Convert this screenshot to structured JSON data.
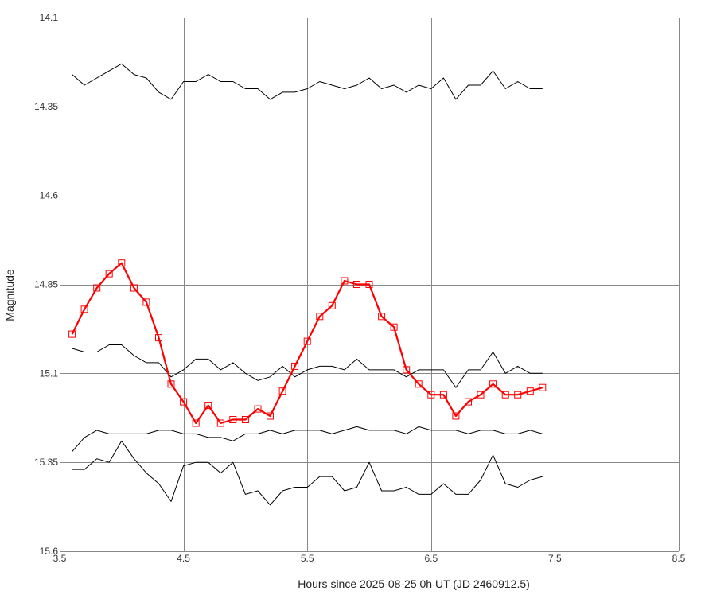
{
  "chart_data": {
    "type": "line",
    "title": "",
    "xlabel": "Hours since 2025-08-25 0h UT (JD 2460912.5)",
    "ylabel": "Magnitude",
    "xlim": [
      3.5,
      8.5
    ],
    "ylim": [
      14.1,
      15.6
    ],
    "y_inverted": true,
    "grid": true,
    "legend": "none",
    "xticks": [
      "3.5",
      "4.5",
      "5.5",
      "6.5",
      "7.5",
      "8.5"
    ],
    "yticks": [
      "14.1",
      "14.35",
      "14.6",
      "14.85",
      "15.1",
      "15.35",
      "15.6"
    ],
    "x": [
      3.6,
      3.7,
      3.8,
      3.9,
      4.0,
      4.1,
      4.2,
      4.3,
      4.4,
      4.5,
      4.6,
      4.7,
      4.8,
      4.9,
      5.0,
      5.1,
      5.2,
      5.3,
      5.4,
      5.5,
      5.6,
      5.7,
      5.8,
      5.9,
      6.0,
      6.1,
      6.2,
      6.3,
      6.4,
      6.5,
      6.6,
      6.7,
      6.8,
      6.9,
      7.0,
      7.1,
      7.2,
      7.3,
      7.4
    ],
    "series": [
      {
        "color": "#ff0000",
        "markers": true,
        "values": [
          14.99,
          14.92,
          14.86,
          14.82,
          14.79,
          14.86,
          14.9,
          15.0,
          15.13,
          15.18,
          15.24,
          15.19,
          15.24,
          15.23,
          15.23,
          15.2,
          15.22,
          15.15,
          15.08,
          15.01,
          14.94,
          14.91,
          14.84,
          14.85,
          14.85,
          14.94,
          14.97,
          15.09,
          15.13,
          15.16,
          15.16,
          15.22,
          15.18,
          15.16,
          15.13,
          15.16,
          15.16,
          15.15,
          15.14
        ]
      },
      {
        "color": "#000000",
        "markers": false,
        "values": [
          14.26,
          14.29,
          14.27,
          14.25,
          14.23,
          14.26,
          14.27,
          14.31,
          14.33,
          14.28,
          14.28,
          14.26,
          14.28,
          14.28,
          14.3,
          14.3,
          14.33,
          14.31,
          14.31,
          14.3,
          14.28,
          14.29,
          14.3,
          14.29,
          14.27,
          14.3,
          14.29,
          14.31,
          14.29,
          14.3,
          14.27,
          14.33,
          14.29,
          14.29,
          14.25,
          14.3,
          14.28,
          14.3,
          14.3
        ]
      },
      {
        "color": "#000000",
        "markers": false,
        "values": [
          15.03,
          15.04,
          15.04,
          15.02,
          15.02,
          15.05,
          15.07,
          15.07,
          15.11,
          15.09,
          15.06,
          15.06,
          15.09,
          15.07,
          15.1,
          15.12,
          15.11,
          15.08,
          15.11,
          15.09,
          15.08,
          15.08,
          15.09,
          15.06,
          15.09,
          15.09,
          15.09,
          15.11,
          15.09,
          15.09,
          15.09,
          15.14,
          15.09,
          15.09,
          15.04,
          15.1,
          15.08,
          15.1,
          15.1
        ]
      },
      {
        "color": "#000000",
        "markers": false,
        "values": [
          15.32,
          15.28,
          15.26,
          15.27,
          15.27,
          15.27,
          15.27,
          15.26,
          15.26,
          15.27,
          15.27,
          15.28,
          15.28,
          15.29,
          15.27,
          15.27,
          15.26,
          15.27,
          15.26,
          15.26,
          15.26,
          15.27,
          15.26,
          15.25,
          15.26,
          15.26,
          15.26,
          15.27,
          15.25,
          15.26,
          15.26,
          15.26,
          15.27,
          15.26,
          15.26,
          15.27,
          15.27,
          15.26,
          15.27
        ]
      },
      {
        "color": "#000000",
        "markers": false,
        "values": [
          15.37,
          15.37,
          15.34,
          15.35,
          15.29,
          15.34,
          15.38,
          15.41,
          15.46,
          15.36,
          15.35,
          15.35,
          15.38,
          15.35,
          15.44,
          15.43,
          15.47,
          15.43,
          15.42,
          15.42,
          15.39,
          15.39,
          15.43,
          15.42,
          15.35,
          15.43,
          15.43,
          15.42,
          15.44,
          15.44,
          15.41,
          15.44,
          15.44,
          15.4,
          15.33,
          15.41,
          15.42,
          15.4,
          15.39
        ]
      }
    ]
  }
}
